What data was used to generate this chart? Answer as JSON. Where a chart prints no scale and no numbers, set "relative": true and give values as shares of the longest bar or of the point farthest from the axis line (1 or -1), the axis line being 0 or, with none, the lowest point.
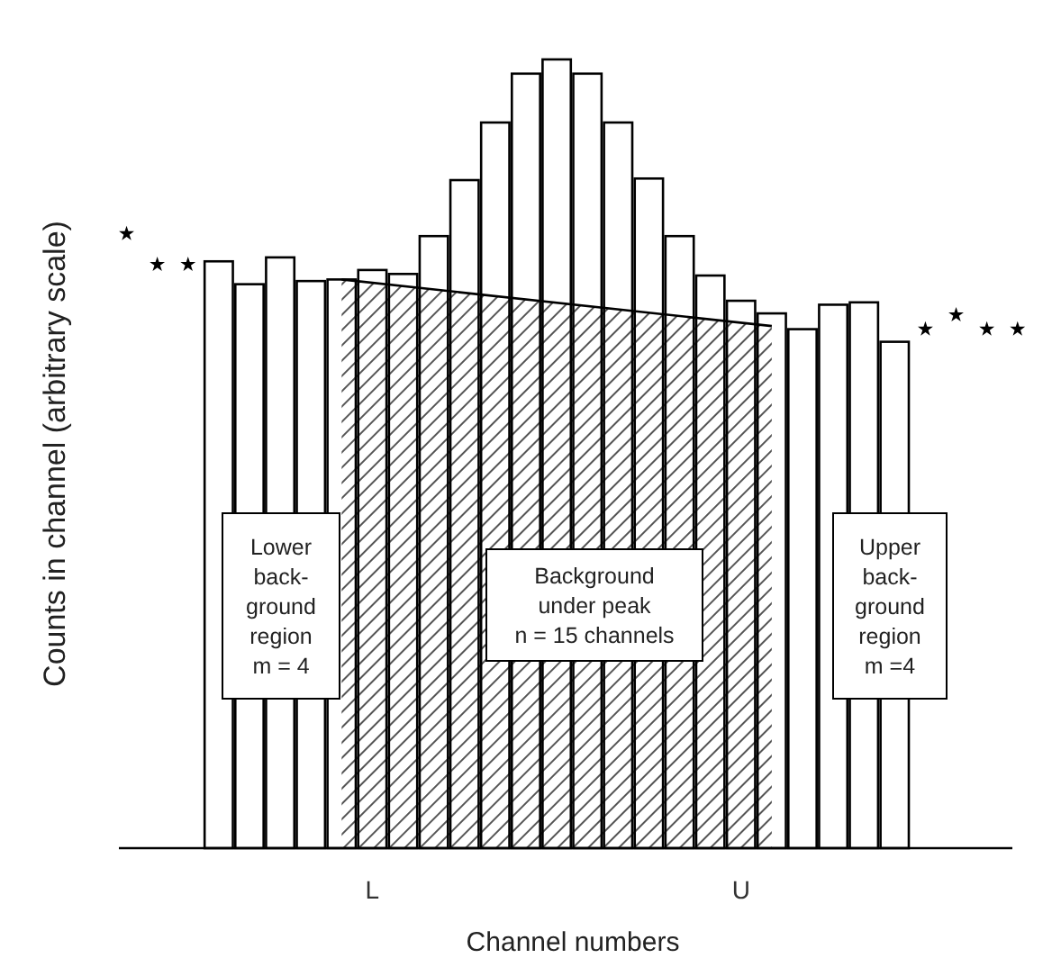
{
  "chart_data": {
    "type": "bar",
    "relative": true,
    "xlabel": "Channel numbers",
    "ylabel": "Counts in channel (arbitrary scale)",
    "categories": [
      null,
      null,
      null,
      null,
      null,
      null,
      null,
      null,
      "L",
      null,
      null,
      null,
      null,
      null,
      null,
      null,
      null,
      null,
      null,
      null,
      "U",
      null,
      null,
      null,
      null,
      null,
      null,
      null,
      null,
      null
    ],
    "series": [
      {
        "type": "area",
        "color": "#555555",
        "values": [
          null,
          null,
          null,
          null,
          null,
          null,
          null,
          0.721,
          null,
          null,
          null,
          null,
          null,
          null,
          null,
          null,
          null,
          null,
          null,
          null,
          null,
          0.662,
          null,
          null,
          null,
          null,
          null,
          null,
          null,
          null
        ]
      },
      {
        "color": "#000000",
        "values": [
          null,
          null,
          null,
          0.744,
          0.715,
          0.749,
          0.719,
          0.721,
          0.733,
          0.728,
          0.776,
          0.847,
          0.92,
          0.982,
          1,
          0.982,
          0.92,
          0.849,
          0.776,
          0.726,
          0.694,
          0.678,
          0.658,
          0.689,
          0.692,
          0.642,
          null,
          null,
          null,
          null
        ]
      },
      {
        "type": "scatter",
        "color": "#000000",
        "marker": "star",
        "values": [
          0.779,
          0.74,
          0.74,
          null,
          null,
          null,
          null,
          null,
          null,
          null,
          null,
          null,
          null,
          null,
          null,
          null,
          null,
          null,
          null,
          null,
          null,
          null,
          null,
          null,
          null,
          null,
          0.658,
          0.676,
          0.658,
          0.658
        ]
      }
    ],
    "annotations": [
      "Lower\nback-\nground\nregion\nm = 4",
      "Background\nunder peak\nn = 15 channels",
      "Upper\nback-\nground\nregion\nm =4"
    ]
  }
}
